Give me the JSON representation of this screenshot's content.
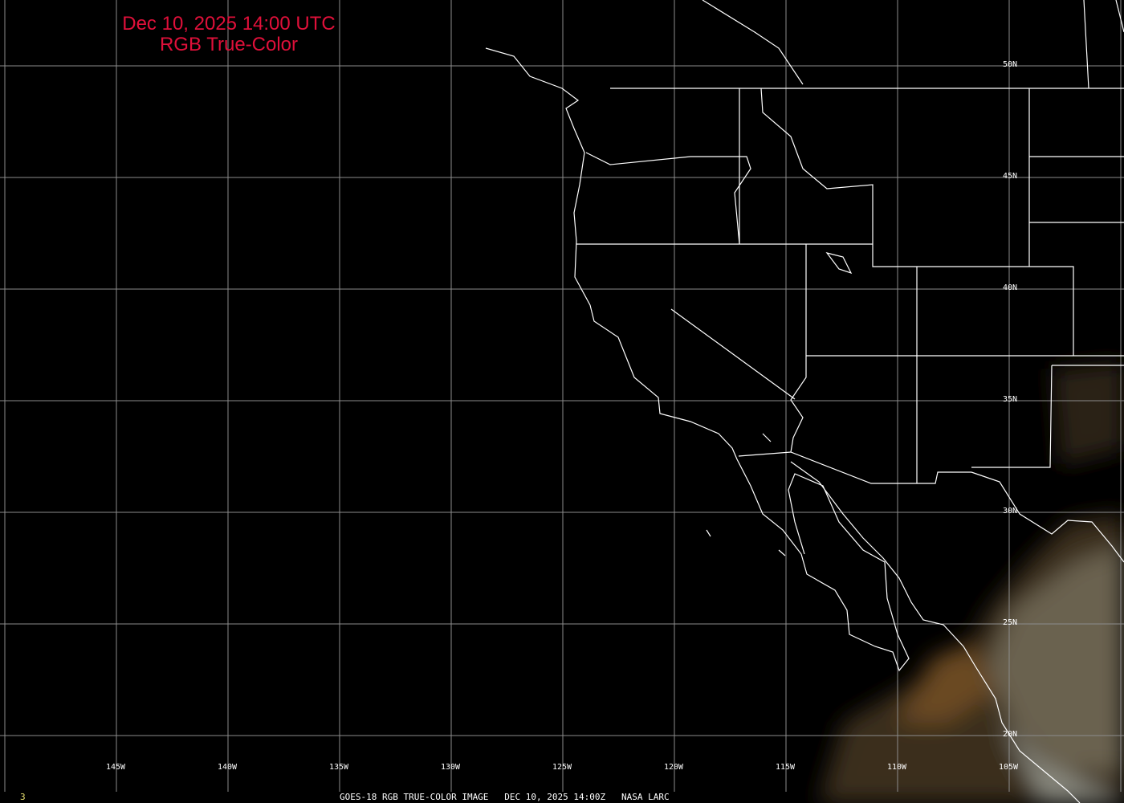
{
  "title": {
    "line1": "Dec 10, 2025 14:00 UTC",
    "line2": "RGB True-Color"
  },
  "grid": {
    "longitude_labels": [
      "145W",
      "140W",
      "135W",
      "130W",
      "125W",
      "120W",
      "115W",
      "110W",
      "105W"
    ],
    "latitude_labels": [
      "50N",
      "45N",
      "40N",
      "35N",
      "30N",
      "25N",
      "20N"
    ]
  },
  "footer": {
    "frame_number": "3",
    "caption": "GOES-18 RGB TRUE-COLOR IMAGE   DEC 10, 2025 14:00Z   NASA LARC"
  },
  "colors": {
    "title": "#e0103a",
    "grid": "#8c8c8c",
    "boundaries": "#ffffff",
    "frame_number": "#e8e070"
  }
}
